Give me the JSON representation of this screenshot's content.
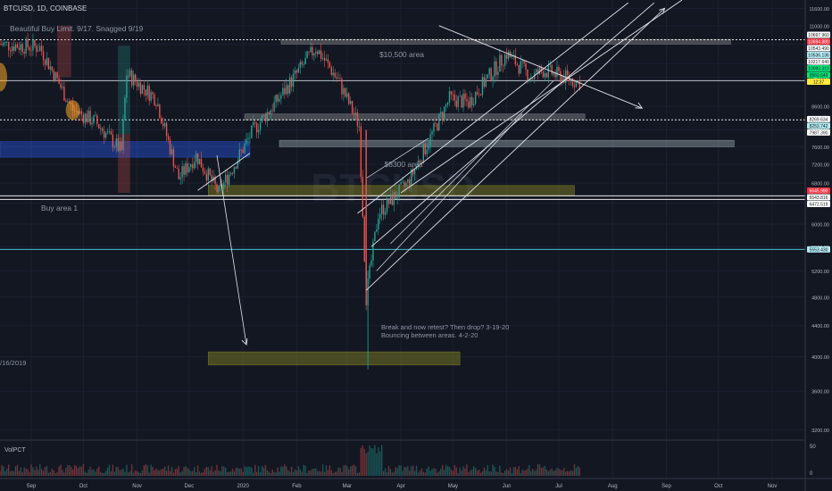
{
  "header": {
    "symbol": "BTCUSD, 1D, COINBASE",
    "note": "Beautiful Buy Limit. 9/17. Snagged 9/19"
  },
  "annotations": {
    "area_10500": "$10,500 area",
    "area_8300": "$8300 area",
    "buy_area": "Buy area 1",
    "retest_line1": "Break and now retest? Then drop? 3-19-20",
    "retest_line2": "Bouncing between areas. 4-2-20",
    "left_date": "9/16/2019"
  },
  "watermark": "BTCUSD",
  "volume_pane": {
    "label": "VolPCT",
    "scale_top": "50",
    "scale_bottom": "0"
  },
  "price_axis": {
    "ticks": [
      "11600.00",
      "11000.00",
      "10400.00",
      "9800.00",
      "9400.00",
      "8600.00",
      "8000.00",
      "7600.00",
      "7200.00",
      "6800.00",
      "6400.00",
      "6000.00",
      "5600.00",
      "5200.00",
      "4800.00",
      "4400.00",
      "4000.00",
      "3600.00",
      "3200.00"
    ],
    "badges": [
      {
        "label": "10697.960",
        "price": 10697.96,
        "bg": "#ffffff",
        "fg": "#131722"
      },
      {
        "label": "10694.880",
        "price": 10694.88,
        "bg": "#f23645",
        "fg": "#ffffff"
      },
      {
        "label": "10543.490",
        "price": 10543.49,
        "bg": "#ffffff",
        "fg": "#131722"
      },
      {
        "label": "10536.136",
        "price": 10536.136,
        "bg": "#b2ebf2",
        "fg": "#131722"
      },
      {
        "label": "10217.640",
        "price": 10217.64,
        "bg": "#ffffff",
        "fg": "#131722"
      },
      {
        "label": "10093.310",
        "price": 10093.31,
        "bg": "#00e676",
        "fg": "#131722"
      },
      {
        "label": "9569.640",
        "price": 9569.64,
        "bg": "#00e676",
        "fg": "#131722"
      },
      {
        "label": "12:37",
        "price": 9300,
        "bg": "#ffeb3b",
        "fg": "#131722"
      },
      {
        "label": "8269.634",
        "price": 8269.634,
        "bg": "#ffffff",
        "fg": "#131722"
      },
      {
        "label": "8253.742",
        "price": 8253.742,
        "bg": "#b2ebf2",
        "fg": "#131722"
      },
      {
        "label": "7987.390",
        "price": 7987.39,
        "bg": "#ffffff",
        "fg": "#131722"
      },
      {
        "label": "6645.990",
        "price": 6645.99,
        "bg": "#f23645",
        "fg": "#ffffff"
      },
      {
        "label": "6543.816",
        "price": 6543.816,
        "bg": "#ffffff",
        "fg": "#131722"
      },
      {
        "label": "6472.519",
        "price": 6472.519,
        "bg": "#ffffff",
        "fg": "#131722"
      },
      {
        "label": "5553.430",
        "price": 5553.43,
        "bg": "#b2ebf2",
        "fg": "#131722"
      }
    ]
  },
  "time_axis": {
    "labels": [
      "Sep",
      "Oct",
      "Nov",
      "Dec",
      "2020",
      "Feb",
      "Mar",
      "Apr",
      "May",
      "Jun",
      "Jul",
      "Aug",
      "Sep",
      "Oct",
      "Nov"
    ]
  },
  "chart_data": {
    "type": "candlestick",
    "title": "BTCUSD, 1D, COINBASE",
    "xlabel": "",
    "ylabel": "",
    "price_scale": "log",
    "ylim": [
      3100,
      11900
    ],
    "x_range": [
      "2019-08-14",
      "2020-11-20"
    ],
    "key_prices": [
      {
        "t": "2019-08-14",
        "p": 10400
      },
      {
        "t": "2019-09-06",
        "p": 10300
      },
      {
        "t": "2019-09-25",
        "p": 8500
      },
      {
        "t": "2019-10-08",
        "p": 8200
      },
      {
        "t": "2019-10-23",
        "p": 7500
      },
      {
        "t": "2019-10-26",
        "p": 9500
      },
      {
        "t": "2019-11-12",
        "p": 8800
      },
      {
        "t": "2019-11-25",
        "p": 6900
      },
      {
        "t": "2019-12-05",
        "p": 7400
      },
      {
        "t": "2019-12-18",
        "p": 6600
      },
      {
        "t": "2020-01-07",
        "p": 8000
      },
      {
        "t": "2020-01-20",
        "p": 8700
      },
      {
        "t": "2020-02-12",
        "p": 10300
      },
      {
        "t": "2020-02-25",
        "p": 9300
      },
      {
        "t": "2020-03-08",
        "p": 8100
      },
      {
        "t": "2020-03-12",
        "p": 4800
      },
      {
        "t": "2020-03-19",
        "p": 6200
      },
      {
        "t": "2020-04-05",
        "p": 6800
      },
      {
        "t": "2020-04-29",
        "p": 8800
      },
      {
        "t": "2020-05-10",
        "p": 8700
      },
      {
        "t": "2020-06-01",
        "p": 10100
      },
      {
        "t": "2020-06-15",
        "p": 9400
      },
      {
        "t": "2020-06-22",
        "p": 9600
      },
      {
        "t": "2020-07-13",
        "p": 9250
      }
    ],
    "price_ticks": [
      11600,
      11000,
      10400,
      9800,
      9400,
      8600,
      8000,
      7600,
      7200,
      6800,
      6400,
      6000,
      5600,
      5200,
      4800,
      4400,
      4000,
      3600,
      3200
    ],
    "horizontal_lines": [
      {
        "price": 10540,
        "style": "dashed",
        "color": "#ffffff"
      },
      {
        "price": 9300,
        "style": "solid",
        "color": "#d1d4dc"
      },
      {
        "price": 8250,
        "style": "dashed",
        "color": "#ffffff"
      },
      {
        "price": 6540,
        "style": "solid",
        "color": "#ffffff"
      },
      {
        "price": 6470,
        "style": "solid",
        "color": "#ffffff"
      },
      {
        "price": 5553,
        "style": "solid",
        "color": "#4dd0e1"
      }
    ],
    "zones": [
      {
        "t1": "2020-01-23",
        "t2": "2020-10-08",
        "p_top": 10550,
        "p_bottom": 10400,
        "color": "#9e9e9e",
        "label": "$10,500 area"
      },
      {
        "t1": "2020-01-02",
        "t2": "2020-07-16",
        "p_top": 8400,
        "p_bottom": 8250,
        "color": "#9e9e9e",
        "label": "$8300 area"
      },
      {
        "t1": "2020-01-22",
        "t2": "2020-10-10",
        "p_top": 7750,
        "p_bottom": 7600,
        "color": "#b0bec5"
      },
      {
        "t1": "2019-08-14",
        "t2": "2020-01-05",
        "p_top": 7720,
        "p_bottom": 7360,
        "color": "#2962ff",
        "label": "Buy area 1"
      },
      {
        "t1": "2019-12-12",
        "t2": "2020-07-10",
        "p_top": 6750,
        "p_bottom": 6550,
        "color": "#9e9d24"
      },
      {
        "t1": "2019-12-12",
        "t2": "2020-05-05",
        "p_top": 4060,
        "p_bottom": 3900,
        "color": "#9e9d24"
      }
    ]
  }
}
